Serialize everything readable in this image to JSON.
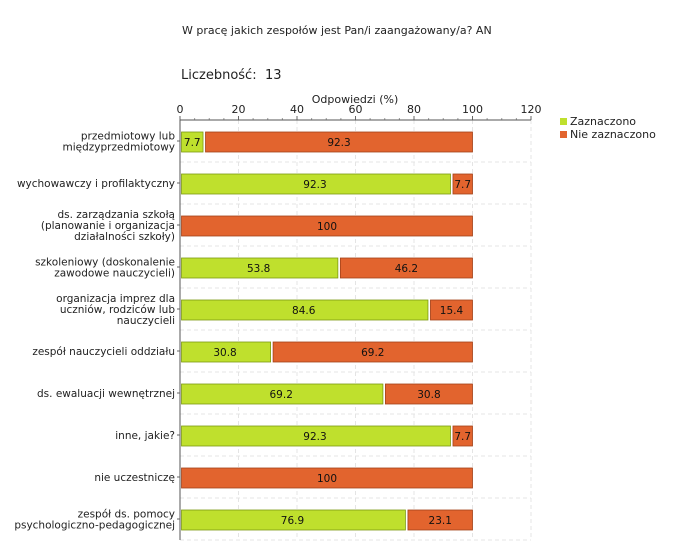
{
  "chart_data": {
    "type": "bar",
    "orientation": "horizontal",
    "stacked": true,
    "title": "W pracę jakich zespołów jest Pan/i zaangażowany/a? AN",
    "count_label": "Liczebność:",
    "count_value": "13",
    "xlabel": "Odpowiedzi (%)",
    "xlim": [
      0,
      120
    ],
    "xticks": [
      0,
      20,
      40,
      60,
      80,
      100,
      120
    ],
    "grid": true,
    "legend_position": "top-right",
    "categories": [
      [
        "przedmiotowy lub",
        "międzyprzedmiotowy"
      ],
      [
        "wychowawczy i profilaktyczny"
      ],
      [
        "ds. zarządzania szkołą",
        "(planowanie i organizacja",
        "działalności szkoły)"
      ],
      [
        "szkoleniowy (doskonalenie",
        "zawodowe nauczycieli)"
      ],
      [
        "organizacja imprez dla",
        "uczniów, rodziców lub",
        "nauczycieli"
      ],
      [
        "zespół nauczycieli oddziału"
      ],
      [
        "ds. ewaluacji wewnętrznej"
      ],
      [
        "inne, jakie?"
      ],
      [
        "nie uczestniczę"
      ],
      [
        "zespół ds. pomocy",
        "psychologiczno-pedagogicznej"
      ]
    ],
    "series": [
      {
        "name": "Zaznaczono",
        "color": "#bfe02d",
        "values": [
          7.7,
          92.3,
          0,
          53.8,
          84.6,
          30.8,
          69.2,
          92.3,
          0,
          76.9
        ],
        "labels": [
          "7.7",
          "92.3",
          "",
          "53.8",
          "84.6",
          "30.8",
          "69.2",
          "92.3",
          "",
          "76.9"
        ]
      },
      {
        "name": "Nie zaznaczono",
        "color": "#e2642e",
        "values": [
          92.3,
          7.7,
          100,
          46.2,
          15.4,
          69.2,
          30.8,
          7.7,
          100,
          23.1
        ],
        "labels": [
          "92.3",
          "7.7",
          "100",
          "46.2",
          "15.4",
          "69.2",
          "30.8",
          "7.7",
          "100",
          "23.1"
        ]
      }
    ]
  }
}
